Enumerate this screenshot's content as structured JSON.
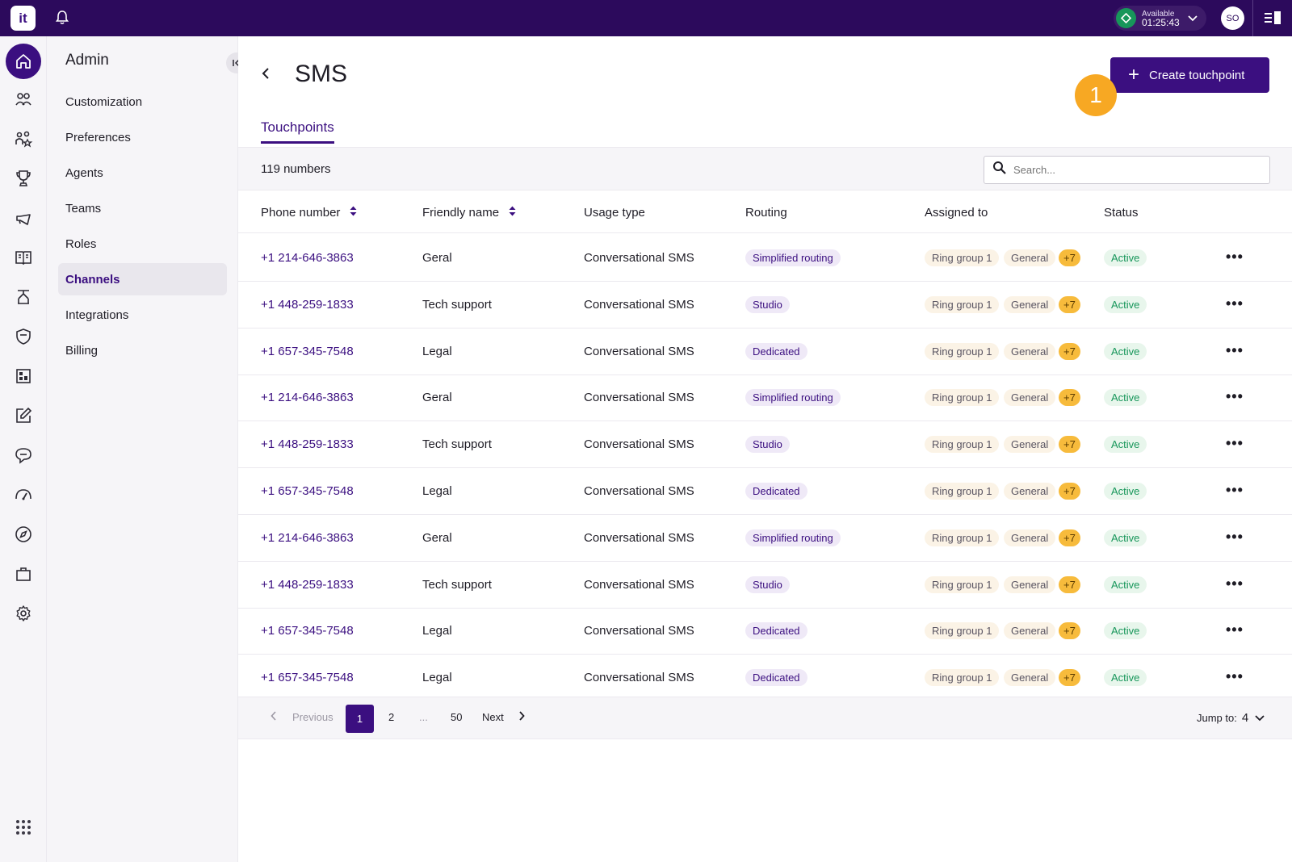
{
  "topbar": {
    "logo": "it",
    "status_label": "Available",
    "status_timer": "01:25:43",
    "status_color": "#17965a",
    "avatar_initials": "SO"
  },
  "rail": {
    "icons": [
      "home-icon",
      "people-icon",
      "team-icon",
      "trophy-icon",
      "megaphone-icon",
      "book-icon",
      "flow-icon",
      "shield-icon",
      "dashboard-icon",
      "edit-icon",
      "chat-icon",
      "speed-icon",
      "compass-icon",
      "briefcase-icon",
      "gear-icon",
      "apps-grid-icon"
    ]
  },
  "sidebar": {
    "title": "Admin",
    "items": [
      {
        "label": "Customization"
      },
      {
        "label": "Preferences"
      },
      {
        "label": "Agents"
      },
      {
        "label": "Teams"
      },
      {
        "label": "Roles"
      },
      {
        "label": "Channels",
        "selected": true
      },
      {
        "label": "Integrations"
      },
      {
        "label": "Billing"
      }
    ]
  },
  "main": {
    "title": "SMS",
    "create_label": "Create touchpoint",
    "step_badge": "1",
    "tab": "Touchpoints",
    "count": "119 numbers",
    "search_placeholder": "Search...",
    "columns": [
      "Phone number",
      "Friendly name",
      "Usage type",
      "Routing",
      "Assigned to",
      "Status"
    ],
    "rows": [
      {
        "phone": "+1 214-646-3863",
        "name": "Geral",
        "usage": "Conversational SMS",
        "routing": "Simplified routing",
        "group": "Ring group 1",
        "assigned": "General",
        "extra": "+7",
        "status": "Active"
      },
      {
        "phone": "+1 448-259-1833",
        "name": "Tech support",
        "usage": "Conversational SMS",
        "routing": "Studio",
        "group": "Ring group 1",
        "assigned": "General",
        "extra": "+7",
        "status": "Active"
      },
      {
        "phone": "+1 657-345-7548",
        "name": "Legal",
        "usage": "Conversational SMS",
        "routing": "Dedicated",
        "group": "Ring group 1",
        "assigned": "General",
        "extra": "+7",
        "status": "Active"
      },
      {
        "phone": "+1 214-646-3863",
        "name": "Geral",
        "usage": "Conversational SMS",
        "routing": "Simplified routing",
        "group": "Ring group 1",
        "assigned": "General",
        "extra": "+7",
        "status": "Active"
      },
      {
        "phone": "+1 448-259-1833",
        "name": "Tech support",
        "usage": "Conversational SMS",
        "routing": "Studio",
        "group": "Ring group 1",
        "assigned": "General",
        "extra": "+7",
        "status": "Active"
      },
      {
        "phone": "+1 657-345-7548",
        "name": "Legal",
        "usage": "Conversational SMS",
        "routing": "Dedicated",
        "group": "Ring group 1",
        "assigned": "General",
        "extra": "+7",
        "status": "Active"
      },
      {
        "phone": "+1 214-646-3863",
        "name": "Geral",
        "usage": "Conversational SMS",
        "routing": "Simplified routing",
        "group": "Ring group 1",
        "assigned": "General",
        "extra": "+7",
        "status": "Active"
      },
      {
        "phone": "+1 448-259-1833",
        "name": "Tech support",
        "usage": "Conversational SMS",
        "routing": "Studio",
        "group": "Ring group 1",
        "assigned": "General",
        "extra": "+7",
        "status": "Active"
      },
      {
        "phone": "+1 657-345-7548",
        "name": "Legal",
        "usage": "Conversational SMS",
        "routing": "Dedicated",
        "group": "Ring group 1",
        "assigned": "General",
        "extra": "+7",
        "status": "Active"
      },
      {
        "phone": "+1 657-345-7548",
        "name": "Legal",
        "usage": "Conversational SMS",
        "routing": "Dedicated",
        "group": "Ring group 1",
        "assigned": "General",
        "extra": "+7",
        "status": "Active"
      }
    ],
    "more_glyph": "•••"
  },
  "pagination": {
    "previous": "Previous",
    "current": "1",
    "page2": "2",
    "ellipsis": "...",
    "last": "50",
    "next": "Next",
    "jump_label": "Jump to:",
    "jump_value": "4"
  },
  "colors": {
    "brand": "#3b0f80",
    "topbar": "#2c0a5c",
    "badge": "#f7a823",
    "active": "#17965a"
  }
}
